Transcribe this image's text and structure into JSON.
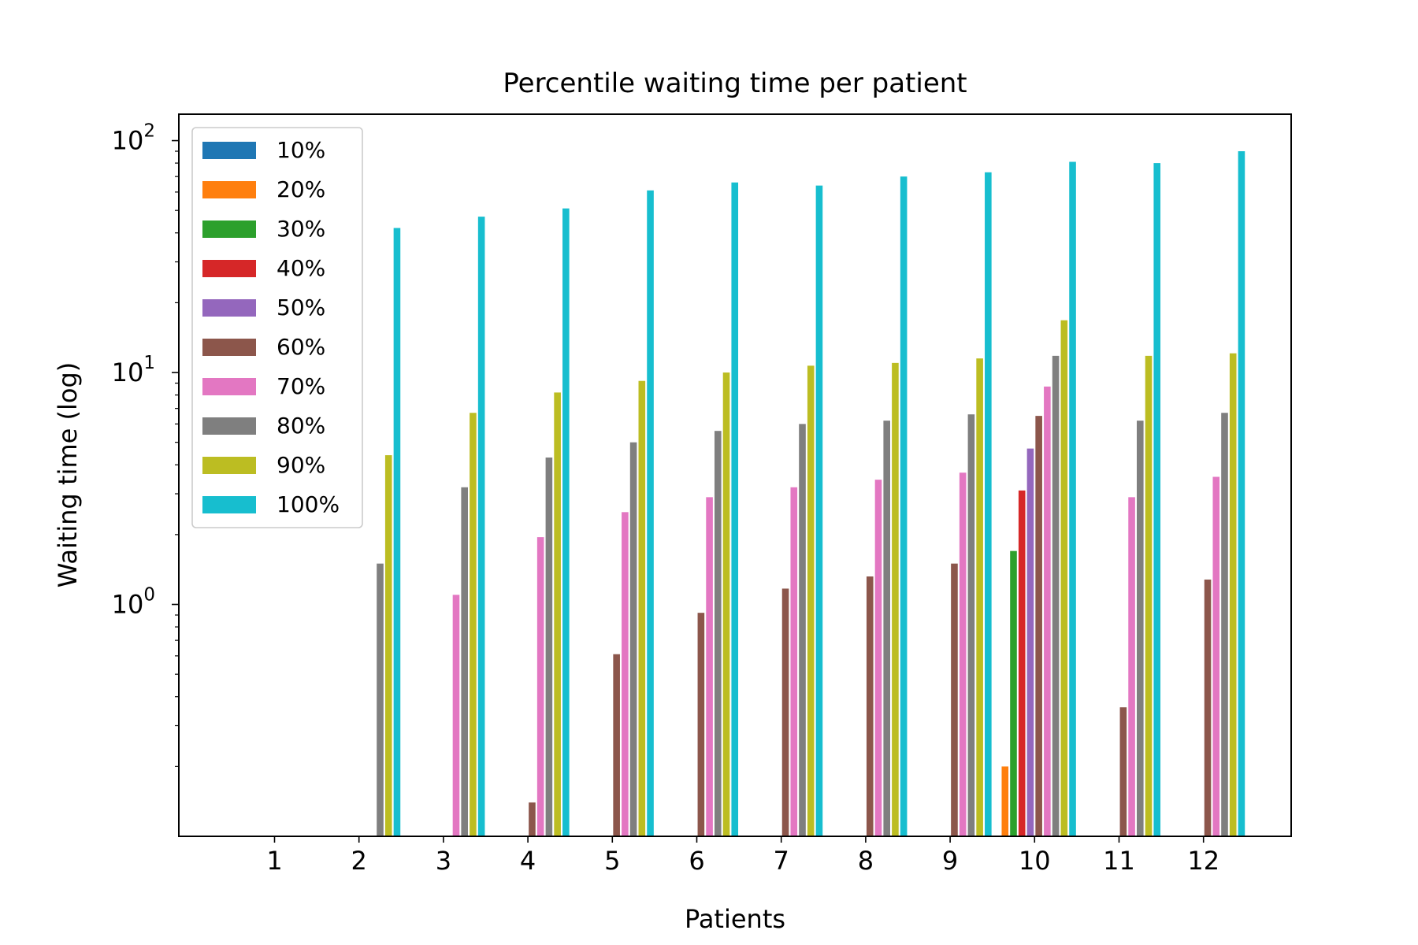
{
  "chart_data": {
    "type": "bar",
    "title": "Percentile waiting time per patient",
    "xlabel": "Patients",
    "ylabel": "Waiting time (log)",
    "yscale": "log",
    "ylim": [
      0.1,
      130
    ],
    "y_ticks": [
      {
        "value": 1,
        "base": "10",
        "exp": "0"
      },
      {
        "value": 10,
        "base": "10",
        "exp": "1"
      },
      {
        "value": 100,
        "base": "10",
        "exp": "2"
      }
    ],
    "categories": [
      "1",
      "2",
      "3",
      "4",
      "5",
      "6",
      "7",
      "8",
      "9",
      "10",
      "11",
      "12"
    ],
    "legend_position": "top-left",
    "grid": false,
    "series": [
      {
        "name": "10%",
        "color": "#1f77b4",
        "values": [
          null,
          null,
          null,
          null,
          null,
          null,
          null,
          null,
          null,
          null,
          null,
          null
        ]
      },
      {
        "name": "20%",
        "color": "#ff7f0e",
        "values": [
          null,
          null,
          null,
          null,
          null,
          null,
          null,
          null,
          null,
          0.2,
          null,
          null
        ]
      },
      {
        "name": "30%",
        "color": "#2ca02c",
        "values": [
          null,
          null,
          null,
          null,
          null,
          null,
          null,
          null,
          null,
          1.7,
          null,
          null
        ]
      },
      {
        "name": "40%",
        "color": "#d62728",
        "values": [
          null,
          null,
          null,
          null,
          null,
          null,
          null,
          null,
          null,
          3.1,
          null,
          null
        ]
      },
      {
        "name": "50%",
        "color": "#9467bd",
        "values": [
          null,
          null,
          null,
          null,
          null,
          null,
          null,
          null,
          null,
          4.7,
          null,
          null
        ]
      },
      {
        "name": "60%",
        "color": "#8c564b",
        "values": [
          null,
          null,
          null,
          0.14,
          0.61,
          0.92,
          1.17,
          1.32,
          1.5,
          6.5,
          0.36,
          1.28
        ]
      },
      {
        "name": "70%",
        "color": "#e377c2",
        "values": [
          null,
          null,
          1.1,
          1.95,
          2.5,
          2.9,
          3.2,
          3.45,
          3.7,
          8.7,
          2.9,
          3.55
        ]
      },
      {
        "name": "80%",
        "color": "#7f7f7f",
        "values": [
          null,
          1.5,
          3.2,
          4.3,
          5.0,
          5.6,
          6.0,
          6.2,
          6.6,
          11.8,
          6.2,
          6.7
        ]
      },
      {
        "name": "90%",
        "color": "#bcbd22",
        "values": [
          null,
          4.4,
          6.7,
          8.2,
          9.2,
          10.0,
          10.7,
          11.0,
          11.5,
          16.8,
          11.8,
          12.1
        ]
      },
      {
        "name": "100%",
        "color": "#17becf",
        "values": [
          null,
          42,
          47,
          51,
          61,
          66,
          64,
          70,
          73,
          81,
          80,
          90
        ]
      }
    ]
  }
}
